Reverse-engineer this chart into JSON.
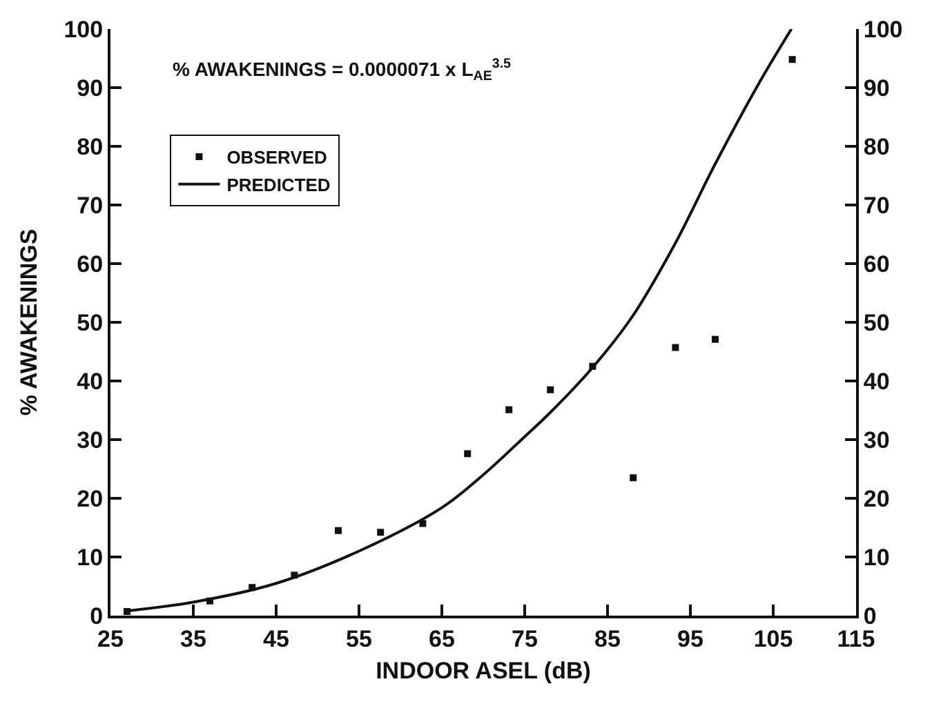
{
  "chart_data": {
    "type": "scatter",
    "xlabel": "INDOOR ASEL (dB)",
    "ylabel": "% AWAKENINGS",
    "annotations": [
      "% AWAKENINGS = 0.0000071 x L$_{AE}$$^{3.5}$"
    ],
    "series": [
      {
        "name": "OBSERVED",
        "marker": "square",
        "color": "#111111",
        "x": [
          27,
          37,
          42.1,
          47.2,
          52.5,
          57.6,
          62.7,
          68.1,
          73.1,
          78.1,
          83.2,
          88.1,
          93.2,
          98,
          107.3
        ],
        "values": [
          0.7,
          2.5,
          4.8,
          6.9,
          14.5,
          14.2,
          15.7,
          27.6,
          35.1,
          38.5,
          42.5,
          23.5,
          45.7,
          47.1,
          94.8
        ]
      },
      {
        "name": "PREDICTED",
        "type": "line",
        "line_style": "solid",
        "color": "#111111",
        "x": [
          27,
          35,
          45,
          55,
          65,
          70,
          75,
          78,
          83.2,
          88,
          93,
          98,
          103.3,
          107.2
        ],
        "values": [
          0.8,
          2.3,
          5.5,
          11,
          18.4,
          24,
          30.5,
          34.5,
          42.3,
          51,
          63,
          77,
          90.8,
          100
        ]
      }
    ],
    "xlim": [
      25,
      115
    ],
    "xticks": [
      25,
      35,
      45,
      55,
      65,
      75,
      85,
      95,
      105,
      115
    ],
    "ylim": [
      0,
      100
    ],
    "yticks": [
      0,
      10,
      20,
      30,
      40,
      50,
      60,
      70,
      80,
      90,
      100
    ],
    "y2lim": [
      0,
      100
    ],
    "y2ticks": [
      0,
      10,
      20,
      30,
      40,
      50,
      60,
      70,
      80,
      90,
      100
    ],
    "legend": "top left"
  }
}
